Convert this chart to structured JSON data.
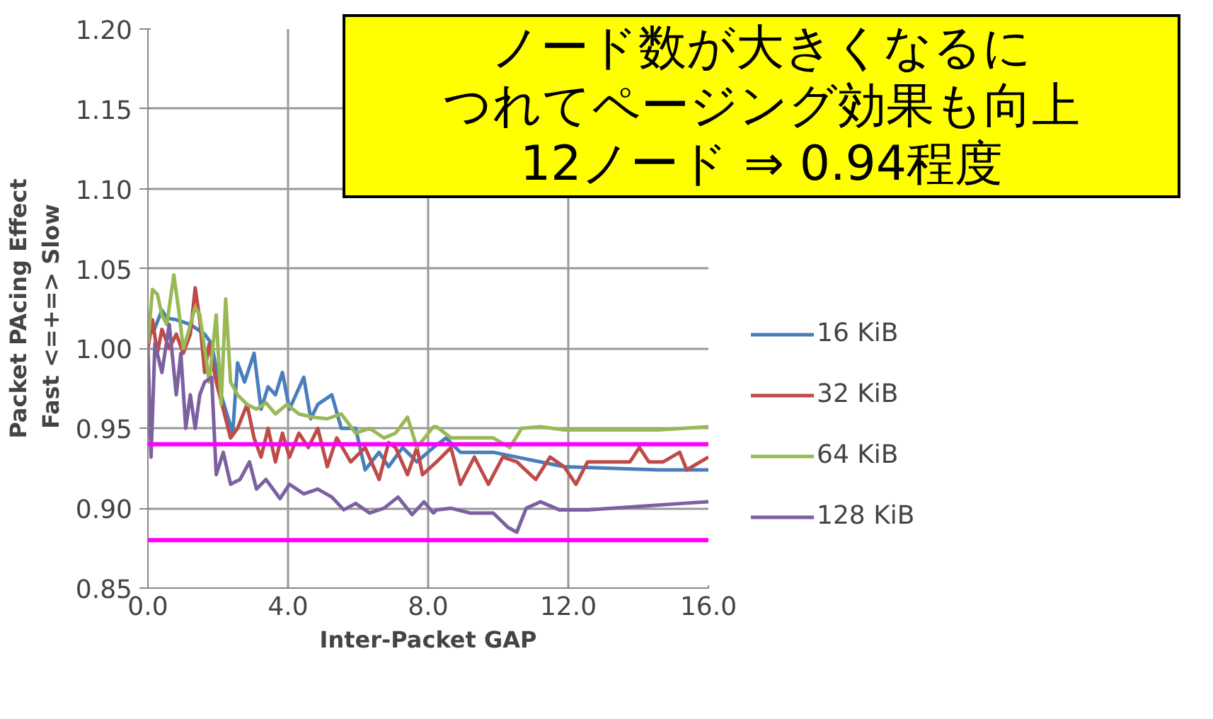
{
  "chart_data": {
    "type": "line",
    "xlabel": "Inter-Packet GAP",
    "ylabel": "Packet PAcing Effect\nFast  <=+=>  Slow",
    "xlim": [
      0,
      16
    ],
    "ylim": [
      0.85,
      1.2
    ],
    "xticks": [
      {
        "value": 0,
        "label": "0.0"
      },
      {
        "value": 4,
        "label": "4.0"
      },
      {
        "value": 8,
        "label": "8.0"
      },
      {
        "value": 12,
        "label": "12.0"
      },
      {
        "value": 16,
        "label": "16.0"
      }
    ],
    "yticks": [
      {
        "value": 0.85,
        "label": "0.85"
      },
      {
        "value": 0.9,
        "label": "0.90"
      },
      {
        "value": 0.95,
        "label": "0.95"
      },
      {
        "value": 1.0,
        "label": "1.00"
      },
      {
        "value": 1.05,
        "label": "1.05"
      },
      {
        "value": 1.1,
        "label": "1.10"
      },
      {
        "value": 1.15,
        "label": "1.15"
      },
      {
        "value": 1.2,
        "label": "1.20"
      }
    ],
    "grid": true,
    "legend": "right",
    "marker": "none",
    "line_style": "solid",
    "annotations": [
      "ノード数が大きくなるに",
      "つれてページング効果も向上",
      "12ノード ⇒ 0.94程度"
    ],
    "ref_lines": [
      {
        "axis": "y",
        "value": 0.94,
        "label": null,
        "color": "#ff00ff"
      },
      {
        "axis": "y",
        "value": 0.88,
        "label": null,
        "color": "#ff00ff"
      }
    ],
    "series": [
      {
        "name": "16 KiB",
        "color": "#4a7ebb",
        "x": [
          0.13,
          0.4,
          0.54,
          0.81,
          1.21,
          1.62,
          1.82,
          2.09,
          2.42,
          2.56,
          2.76,
          3.03,
          3.23,
          3.43,
          3.64,
          3.84,
          4.04,
          4.45,
          4.65,
          4.85,
          5.25,
          5.52,
          5.93,
          6.2,
          6.6,
          6.87,
          7.27,
          7.68,
          8.15,
          8.51,
          8.92,
          9.32,
          9.86,
          10.53,
          11.21,
          11.88,
          13.23,
          14.57,
          16.0
        ],
        "values": [
          1.009,
          1.024,
          1.019,
          1.018,
          1.015,
          1.009,
          1.003,
          0.971,
          0.947,
          0.991,
          0.979,
          0.997,
          0.962,
          0.976,
          0.971,
          0.985,
          0.962,
          0.982,
          0.956,
          0.965,
          0.971,
          0.95,
          0.95,
          0.924,
          0.935,
          0.926,
          0.938,
          0.929,
          0.938,
          0.944,
          0.935,
          0.935,
          0.935,
          0.932,
          0.929,
          0.926,
          0.925,
          0.924,
          0.924
        ]
      },
      {
        "name": "32 KiB",
        "color": "#be4b48",
        "x": [
          0.0,
          0.13,
          0.27,
          0.4,
          0.61,
          0.81,
          1.01,
          1.21,
          1.35,
          1.48,
          1.62,
          1.75,
          1.95,
          2.15,
          2.36,
          2.56,
          2.83,
          3.03,
          3.23,
          3.43,
          3.64,
          3.84,
          4.04,
          4.31,
          4.58,
          4.85,
          5.12,
          5.39,
          5.79,
          6.2,
          6.6,
          6.87,
          7.07,
          7.41,
          7.68,
          7.84,
          8.24,
          8.65,
          8.92,
          9.32,
          9.72,
          10.13,
          10.53,
          11.07,
          11.48,
          11.88,
          12.22,
          12.55,
          13.23,
          13.76,
          14.03,
          14.3,
          14.71,
          15.18,
          15.38,
          16.0
        ],
        "values": [
          1.0,
          1.018,
          0.997,
          1.012,
          1.0,
          1.009,
          0.997,
          1.009,
          1.038,
          1.018,
          0.985,
          1.003,
          0.979,
          0.962,
          0.944,
          0.95,
          0.965,
          0.944,
          0.932,
          0.95,
          0.929,
          0.947,
          0.932,
          0.947,
          0.938,
          0.95,
          0.926,
          0.944,
          0.929,
          0.938,
          0.918,
          0.941,
          0.938,
          0.921,
          0.938,
          0.921,
          0.929,
          0.938,
          0.915,
          0.932,
          0.915,
          0.932,
          0.929,
          0.918,
          0.932,
          0.926,
          0.915,
          0.929,
          0.929,
          0.929,
          0.938,
          0.929,
          0.929,
          0.935,
          0.924,
          0.932
        ]
      },
      {
        "name": "64 KiB",
        "color": "#98b954",
        "x": [
          0.0,
          0.13,
          0.27,
          0.4,
          0.54,
          0.74,
          0.88,
          1.01,
          1.14,
          1.35,
          1.48,
          1.62,
          1.75,
          1.95,
          2.09,
          2.22,
          2.36,
          2.56,
          2.83,
          3.1,
          3.37,
          3.64,
          3.97,
          4.31,
          4.71,
          5.12,
          5.52,
          5.93,
          6.33,
          6.74,
          7.07,
          7.41,
          7.68,
          8.15,
          8.24,
          8.65,
          9.19,
          9.86,
          10.33,
          10.67,
          11.21,
          11.88,
          13.23,
          14.57,
          16.0
        ],
        "values": [
          1.003,
          1.037,
          1.034,
          1.021,
          1.015,
          1.046,
          1.024,
          1.0,
          1.009,
          1.026,
          1.021,
          1.0,
          0.979,
          1.021,
          0.965,
          1.031,
          0.979,
          0.971,
          0.965,
          0.962,
          0.966,
          0.959,
          0.965,
          0.959,
          0.957,
          0.956,
          0.959,
          0.947,
          0.95,
          0.944,
          0.947,
          0.957,
          0.938,
          0.951,
          0.951,
          0.944,
          0.944,
          0.944,
          0.938,
          0.95,
          0.951,
          0.949,
          0.949,
          0.949,
          0.951
        ]
      },
      {
        "name": "128 KiB",
        "color": "#7d60a0",
        "x": [
          0.0,
          0.09,
          0.2,
          0.4,
          0.61,
          0.81,
          0.94,
          1.08,
          1.21,
          1.35,
          1.48,
          1.62,
          1.82,
          1.95,
          2.15,
          2.36,
          2.63,
          2.9,
          3.1,
          3.37,
          3.77,
          4.04,
          4.45,
          4.85,
          5.25,
          5.59,
          5.93,
          6.33,
          6.74,
          7.14,
          7.54,
          7.88,
          8.15,
          8.24,
          8.65,
          9.19,
          9.86,
          10.28,
          10.53,
          10.8,
          11.21,
          11.74,
          12.55,
          13.9,
          15.24,
          16.0
        ],
        "values": [
          1.0,
          0.932,
          1.003,
          0.985,
          1.015,
          0.971,
          0.997,
          0.95,
          0.971,
          0.95,
          0.971,
          0.979,
          0.982,
          0.921,
          0.935,
          0.915,
          0.918,
          0.929,
          0.912,
          0.918,
          0.906,
          0.915,
          0.909,
          0.912,
          0.907,
          0.899,
          0.903,
          0.897,
          0.9,
          0.907,
          0.896,
          0.904,
          0.897,
          0.899,
          0.9,
          0.897,
          0.897,
          0.888,
          0.885,
          0.9,
          0.904,
          0.899,
          0.899,
          0.901,
          0.903,
          0.904
        ]
      }
    ]
  }
}
